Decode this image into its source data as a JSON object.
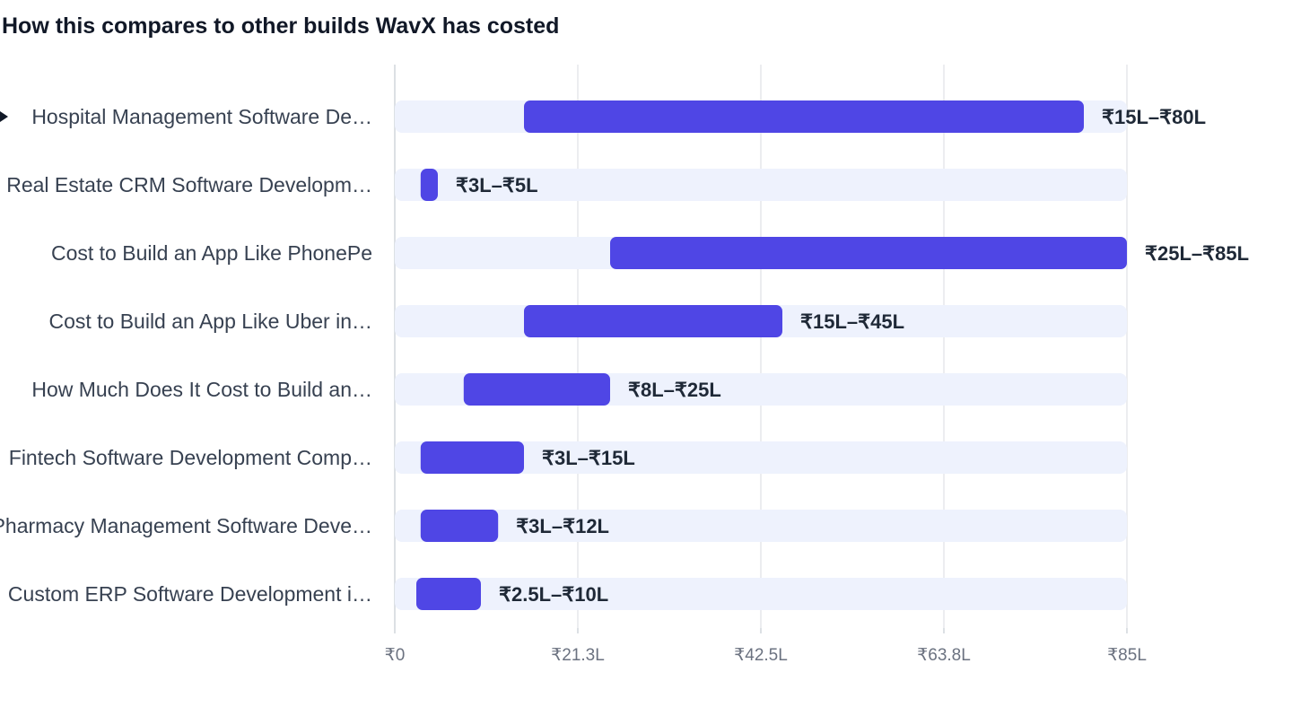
{
  "chart_data": {
    "type": "bar",
    "subtype": "range",
    "title": "How this compares to other builds WavX has costed",
    "xlabel": "",
    "ylabel": "",
    "xlim": [
      0,
      85
    ],
    "unit": "₹ Lakh",
    "grid": true,
    "legend": "none",
    "highlighted_index": 0,
    "x_ticks": [
      {
        "value": 0,
        "label": "₹0"
      },
      {
        "value": 21.25,
        "label": "₹21.3L"
      },
      {
        "value": 42.5,
        "label": "₹42.5L"
      },
      {
        "value": 63.75,
        "label": "₹63.8L"
      },
      {
        "value": 85,
        "label": "₹85L"
      }
    ],
    "categories": [
      {
        "display": "Hospital Management Software De…",
        "low": 15,
        "high": 80,
        "label": "₹15L–₹80L"
      },
      {
        "display": "Real Estate CRM Software Developm…",
        "low": 3,
        "high": 5,
        "label": "₹3L–₹5L"
      },
      {
        "display": "Cost to Build an App Like PhonePe",
        "low": 25,
        "high": 85,
        "label": "₹25L–₹85L"
      },
      {
        "display": "Cost to Build an App Like Uber in…",
        "low": 15,
        "high": 45,
        "label": "₹15L–₹45L"
      },
      {
        "display": "How Much Does It Cost to Build an…",
        "low": 8,
        "high": 25,
        "label": "₹8L–₹25L"
      },
      {
        "display": "Fintech Software Development Comp…",
        "low": 3,
        "high": 15,
        "label": "₹3L–₹15L"
      },
      {
        "display": "Pharmacy Management Software Deve…",
        "low": 3,
        "high": 12,
        "label": "₹3L–₹12L"
      },
      {
        "display": "Custom ERP Software Development i…",
        "low": 2.5,
        "high": 10,
        "label": "₹2.5L–₹10L"
      }
    ]
  },
  "colors": {
    "bar": "#4f46e5",
    "track": "#eef2fd",
    "grid": "#e5e7eb",
    "axis": "#d1d5db",
    "marker": "#111827"
  }
}
